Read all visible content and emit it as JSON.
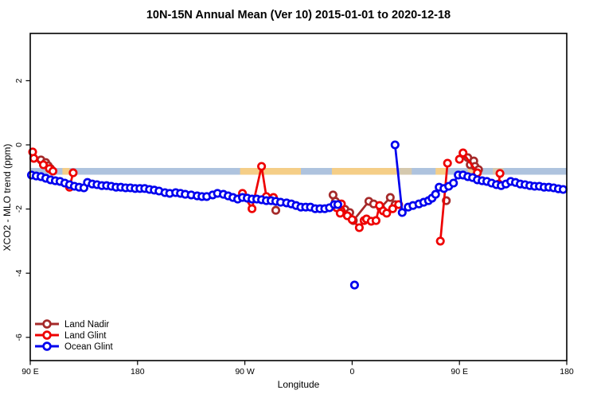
{
  "title": "10N-15N Annual Mean (Ver 10)  2015-01-01 to 2020-12-18",
  "legend": {
    "items": [
      {
        "key": "land-nadir",
        "label": "Land Nadir",
        "color": "#A52A2A"
      },
      {
        "key": "land-glint",
        "label": "Land Glint",
        "color": "#EE0000"
      },
      {
        "key": "ocean-glint",
        "label": "Ocean Glint",
        "color": "#0000EE"
      }
    ]
  },
  "chart_data": {
    "type": "scatter",
    "title": "10N-15N Annual Mean (Ver 10)  2015-01-01 to 2020-12-18",
    "xlabel": "Longitude",
    "ylabel": "XCO2 - MLO trend (ppm)",
    "x_axis": {
      "note": "longitude axis wraps eastward: 90E -> 180 -> 90W -> 0 -> 90E -> 180; stored as degrees 90..540",
      "range_deg": [
        90,
        540
      ],
      "ticks_deg": [
        90,
        180,
        270,
        360,
        450,
        540
      ],
      "tick_labels": [
        "90 E",
        "180",
        "90 W",
        "0",
        "90 E",
        "180"
      ]
    },
    "y_axis": {
      "range": [
        -6.8,
        3.0
      ],
      "ticks": [
        2,
        0,
        -2,
        -4,
        -6
      ],
      "tick_labels": [
        "2",
        "0",
        "-2",
        "-4",
        "-6"
      ]
    },
    "map_strip": {
      "comment": "thin world-map band at 10N-15N drawn across plot",
      "ocean_color": "#AEC3DE",
      "land_color": "#F5CE87",
      "ppm_top": -0.72,
      "ppm_bottom": -0.93,
      "land_patches_deg": [
        {
          "from": 117,
          "to": 123,
          "solid": true
        },
        {
          "from": 266,
          "to": 317,
          "solid": true
        },
        {
          "from": 343,
          "to": 399,
          "solid": true
        },
        {
          "from": 400,
          "to": 410,
          "solid": false
        },
        {
          "from": 430,
          "to": 439,
          "solid": true
        },
        {
          "from": 457,
          "to": 466,
          "solid": true
        },
        {
          "from": 478,
          "to": 487,
          "solid": false
        }
      ]
    },
    "series": [
      {
        "key": "land-nadir",
        "name": "Land Nadir",
        "color": "#A52A2A",
        "chains": [
          [
            [
              99,
              -0.47
            ],
            [
              103,
              -0.55
            ],
            [
              105,
              -0.65
            ],
            [
              107,
              -0.74
            ]
          ],
          [
            [
              296,
              -2.04
            ]
          ],
          [
            [
              344,
              -1.56
            ],
            [
              346,
              -1.76
            ],
            [
              354,
              -2.01
            ],
            [
              358,
              -2.11
            ],
            [
              361,
              -2.36
            ],
            [
              374,
              -1.76
            ],
            [
              378,
              -1.84
            ],
            [
              384,
              -1.96
            ],
            [
              392,
              -1.64
            ],
            [
              396,
              -1.86
            ]
          ],
          [
            [
              439,
              -1.74
            ]
          ],
          [
            [
              457,
              -0.4
            ],
            [
              459,
              -0.62
            ],
            [
              462,
              -0.5
            ],
            [
              463,
              -0.67
            ],
            [
              466,
              -0.77
            ]
          ]
        ]
      },
      {
        "key": "land-glint",
        "name": "Land Glint",
        "color": "#EE0000",
        "chains": [
          [
            [
              92,
              -0.22
            ],
            [
              93,
              -0.42
            ],
            [
              101,
              -0.62
            ],
            [
              106,
              -0.74
            ],
            [
              109,
              -0.82
            ]
          ],
          [
            [
              123,
              -1.32
            ],
            [
              126,
              -0.87
            ]
          ],
          [
            [
              268,
              -1.51
            ],
            [
              276,
              -1.99
            ],
            [
              284,
              -0.67
            ],
            [
              288,
              -1.61
            ],
            [
              294,
              -1.64
            ]
          ],
          [
            [
              347,
              -1.96
            ],
            [
              350,
              -2.13
            ],
            [
              351,
              -1.84
            ],
            [
              356,
              -2.21
            ],
            [
              360,
              -2.33
            ],
            [
              366,
              -2.58
            ],
            [
              370,
              -2.36
            ],
            [
              372,
              -2.31
            ],
            [
              376,
              -2.38
            ],
            [
              380,
              -2.36
            ],
            [
              383,
              -1.89
            ],
            [
              386,
              -2.06
            ],
            [
              389,
              -2.13
            ],
            [
              394,
              -1.99
            ],
            [
              399,
              -1.86
            ]
          ],
          [
            [
              434,
              -3.0
            ],
            [
              440,
              -0.57
            ]
          ],
          [
            [
              450,
              -0.45
            ],
            [
              453,
              -0.25
            ],
            [
              465,
              -0.87
            ]
          ],
          [
            [
              483,
              -1.22
            ],
            [
              484,
              -0.89
            ]
          ]
        ]
      },
      {
        "key": "ocean-glint",
        "name": "Ocean Glint",
        "color": "#0000EE",
        "chains": [
          [
            [
              91,
              -0.94
            ],
            [
              95,
              -0.97
            ],
            [
              99,
              -0.99
            ],
            [
              103,
              -1.04
            ],
            [
              107,
              -1.09
            ],
            [
              111,
              -1.12
            ],
            [
              115,
              -1.14
            ],
            [
              119,
              -1.19
            ],
            [
              123,
              -1.24
            ],
            [
              127,
              -1.29
            ],
            [
              131,
              -1.32
            ],
            [
              135,
              -1.34
            ],
            [
              138,
              -1.17
            ],
            [
              142,
              -1.22
            ],
            [
              146,
              -1.24
            ],
            [
              150,
              -1.27
            ],
            [
              154,
              -1.27
            ],
            [
              158,
              -1.29
            ],
            [
              162,
              -1.32
            ],
            [
              166,
              -1.32
            ],
            [
              170,
              -1.34
            ],
            [
              174,
              -1.34
            ],
            [
              178,
              -1.36
            ],
            [
              182,
              -1.36
            ],
            [
              186,
              -1.36
            ],
            [
              190,
              -1.39
            ],
            [
              194,
              -1.41
            ],
            [
              198,
              -1.44
            ],
            [
              203,
              -1.49
            ],
            [
              207,
              -1.51
            ],
            [
              212,
              -1.49
            ],
            [
              216,
              -1.51
            ],
            [
              220,
              -1.54
            ],
            [
              225,
              -1.56
            ],
            [
              230,
              -1.59
            ],
            [
              234,
              -1.61
            ],
            [
              238,
              -1.61
            ],
            [
              243,
              -1.56
            ],
            [
              247,
              -1.51
            ],
            [
              252,
              -1.54
            ],
            [
              256,
              -1.59
            ],
            [
              260,
              -1.64
            ],
            [
              264,
              -1.69
            ],
            [
              268,
              -1.64
            ],
            [
              272,
              -1.66
            ],
            [
              276,
              -1.69
            ],
            [
              280,
              -1.69
            ],
            [
              284,
              -1.71
            ],
            [
              288,
              -1.74
            ],
            [
              292,
              -1.74
            ],
            [
              296,
              -1.76
            ],
            [
              300,
              -1.79
            ],
            [
              305,
              -1.81
            ],
            [
              309,
              -1.84
            ],
            [
              313,
              -1.89
            ],
            [
              317,
              -1.94
            ],
            [
              321,
              -1.94
            ],
            [
              325,
              -1.94
            ],
            [
              329,
              -1.99
            ],
            [
              333,
              -1.99
            ],
            [
              337,
              -1.99
            ],
            [
              341,
              -1.96
            ],
            [
              345,
              -1.86
            ],
            [
              348,
              -1.86
            ]
          ],
          [
            [
              396,
              0.0
            ],
            [
              402,
              -2.11
            ],
            [
              407,
              -1.94
            ],
            [
              411,
              -1.89
            ],
            [
              416,
              -1.84
            ],
            [
              420,
              -1.79
            ],
            [
              424,
              -1.74
            ],
            [
              427,
              -1.66
            ],
            [
              430,
              -1.54
            ],
            [
              433,
              -1.32
            ],
            [
              437,
              -1.36
            ],
            [
              441,
              -1.29
            ],
            [
              445,
              -1.19
            ],
            [
              449,
              -0.94
            ],
            [
              453,
              -0.94
            ],
            [
              457,
              -0.99
            ],
            [
              461,
              -1.02
            ],
            [
              465,
              -1.09
            ],
            [
              469,
              -1.12
            ],
            [
              473,
              -1.14
            ],
            [
              477,
              -1.19
            ],
            [
              481,
              -1.24
            ],
            [
              485,
              -1.27
            ],
            [
              489,
              -1.22
            ],
            [
              493,
              -1.14
            ],
            [
              497,
              -1.17
            ],
            [
              501,
              -1.22
            ],
            [
              505,
              -1.24
            ],
            [
              509,
              -1.27
            ],
            [
              513,
              -1.29
            ],
            [
              517,
              -1.29
            ],
            [
              521,
              -1.32
            ],
            [
              525,
              -1.32
            ],
            [
              529,
              -1.34
            ],
            [
              533,
              -1.37
            ],
            [
              537,
              -1.39
            ]
          ],
          [
            [
              362,
              -4.37
            ]
          ]
        ]
      }
    ]
  }
}
